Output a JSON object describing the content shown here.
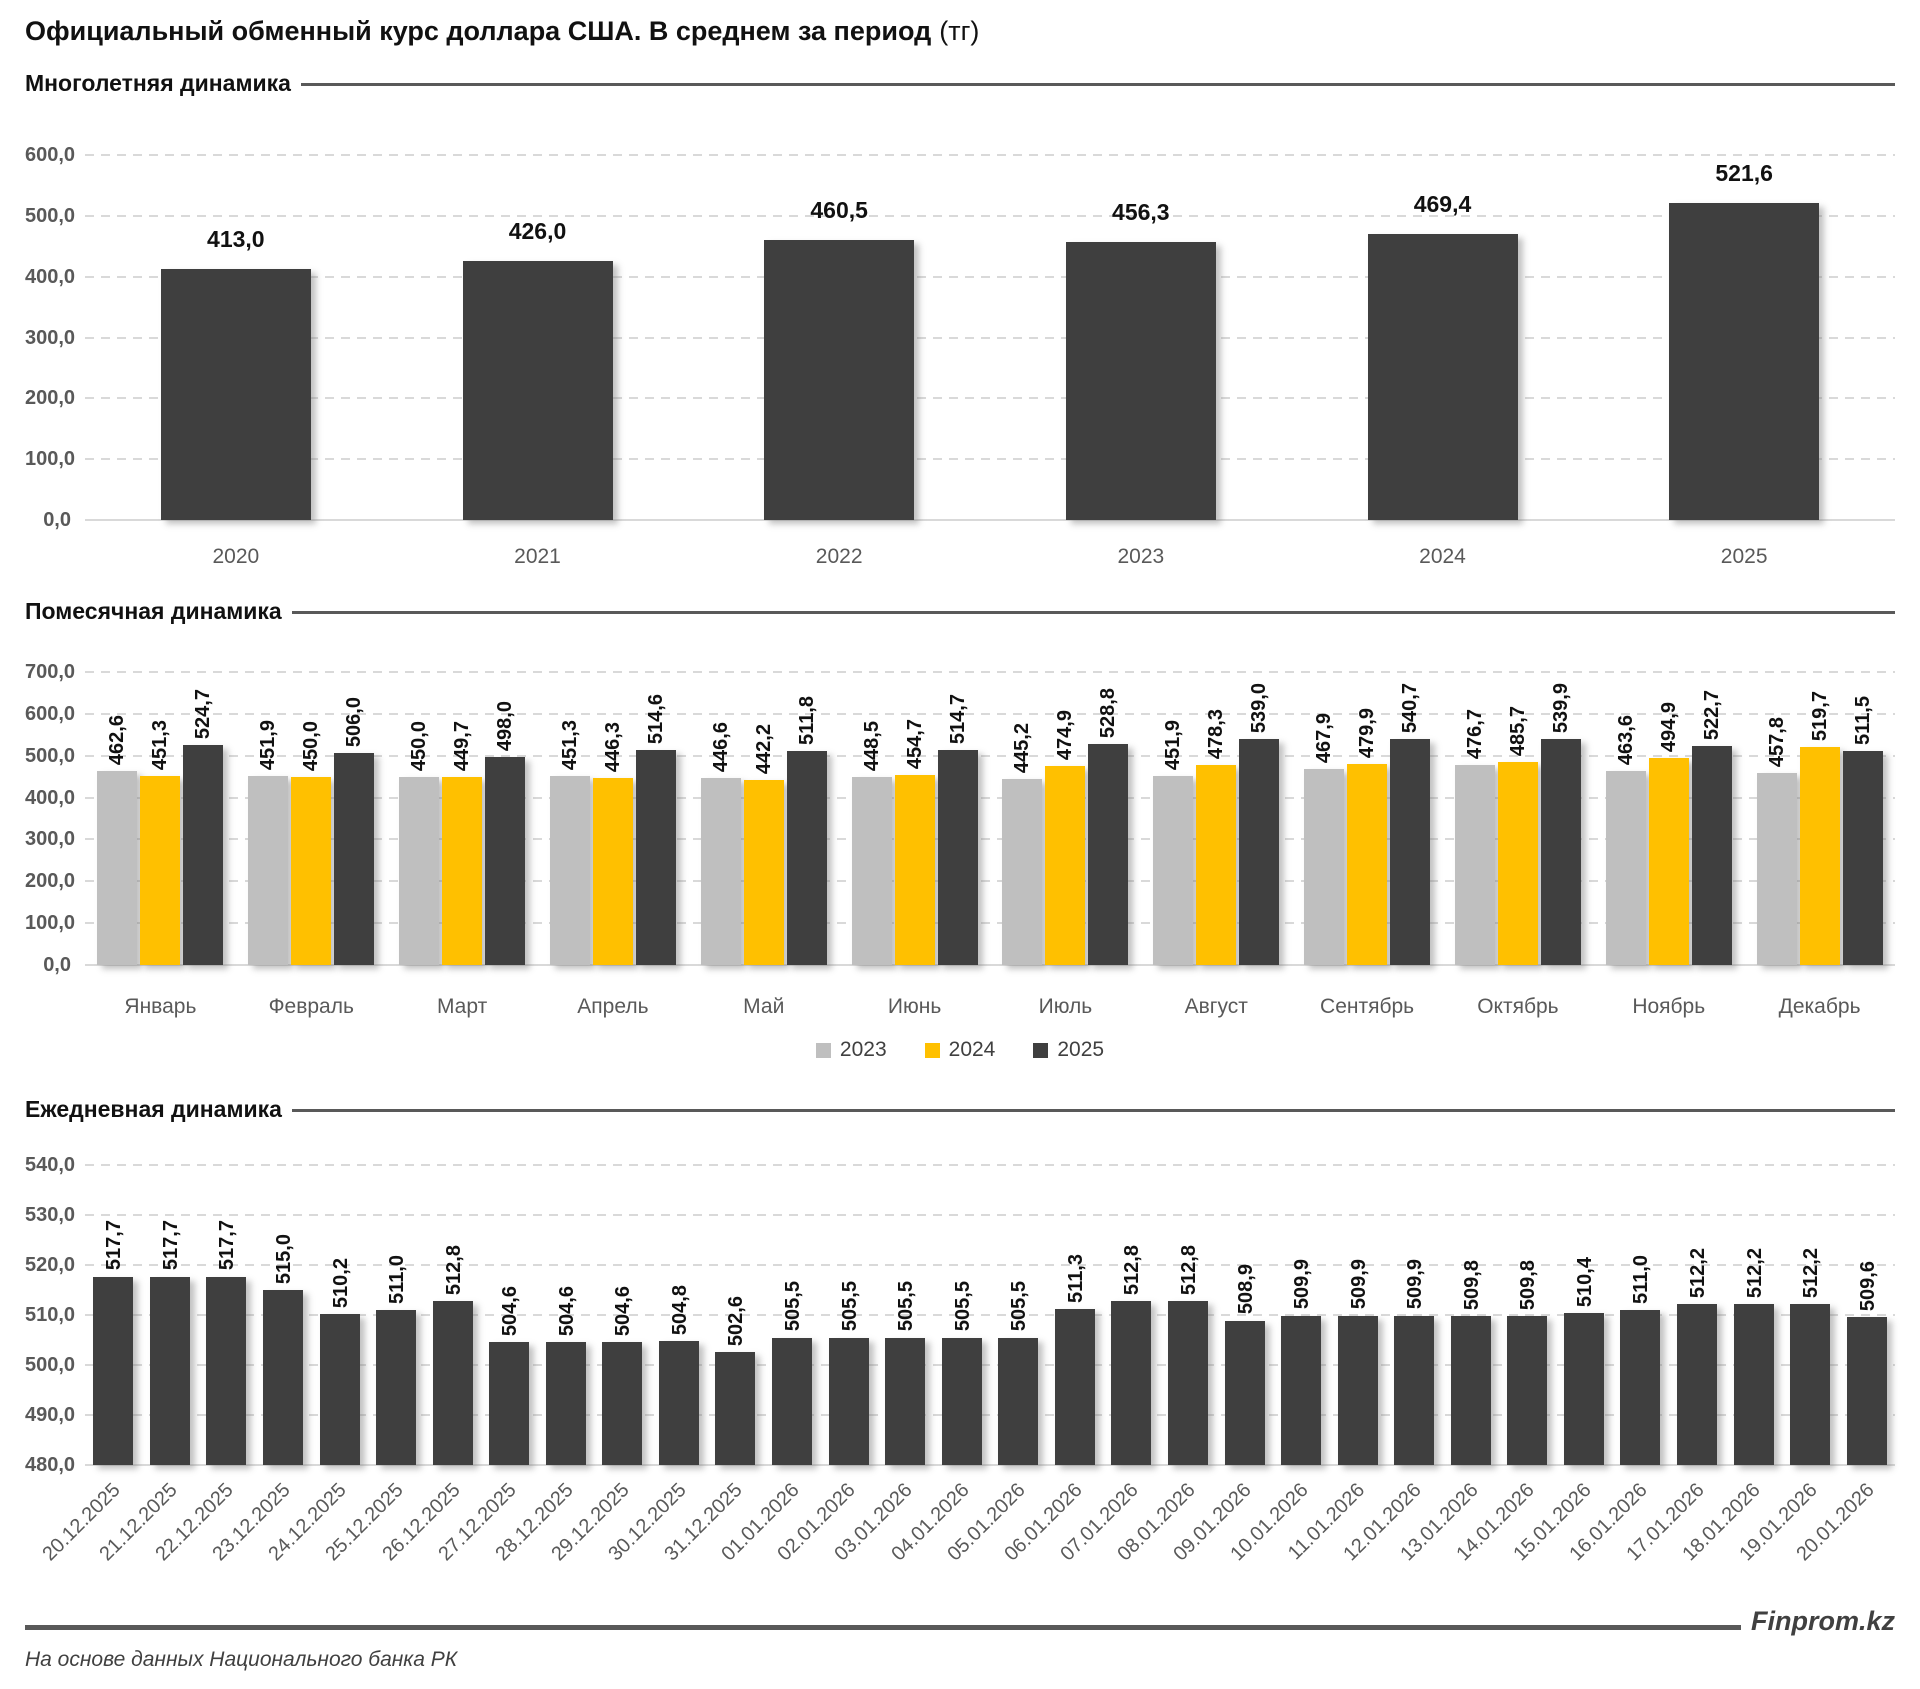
{
  "page_title": {
    "main": "Официальный обменный курс доллара США. В среднем за период",
    "unit": "(тг)"
  },
  "sections": [
    {
      "id": "yearly",
      "label": "Многолетняя динамика"
    },
    {
      "id": "monthly",
      "label": "Помесячная динамика"
    },
    {
      "id": "daily",
      "label": "Ежедневная динамика"
    }
  ],
  "footer": {
    "source_note": "На основе данных Национального банка РК",
    "brand": "Finprom.kz"
  },
  "colors": {
    "bar_dark": "#3f3f3f",
    "bar_yellow": "#ffc000",
    "bar_gray": "#bfbfbf",
    "axis_text": "#595959",
    "gridline": "#d9d9d9",
    "rule": "#595959"
  },
  "chart_data": [
    {
      "id": "yearly",
      "type": "bar",
      "title": "Многолетняя динамика",
      "categories": [
        "2020",
        "2021",
        "2022",
        "2023",
        "2024",
        "2025"
      ],
      "values": [
        413.0,
        426.0,
        460.5,
        456.3,
        469.4,
        521.6
      ],
      "value_labels": [
        "413,0",
        "426,0",
        "460,5",
        "456,3",
        "469,4",
        "521,6"
      ],
      "ylim": [
        0,
        600
      ],
      "ytick_labels": [
        "0,0",
        "100,0",
        "200,0",
        "300,0",
        "400,0",
        "500,0",
        "600,0"
      ],
      "grid": "dashed",
      "legend_position": "none",
      "bar_color_key": "bar_dark"
    },
    {
      "id": "monthly",
      "type": "bar",
      "title": "Помесячная динамика",
      "categories": [
        "Январь",
        "Февраль",
        "Март",
        "Апрель",
        "Май",
        "Июнь",
        "Июль",
        "Август",
        "Сентябрь",
        "Октябрь",
        "Ноябрь",
        "Декабрь"
      ],
      "series": [
        {
          "name": "2023",
          "color_key": "bar_gray",
          "values": [
            462.6,
            451.9,
            450.0,
            451.3,
            446.6,
            448.5,
            445.2,
            451.9,
            467.9,
            476.7,
            463.6,
            457.8
          ],
          "value_labels": [
            "462,6",
            "451,9",
            "450,0",
            "451,3",
            "446,6",
            "448,5",
            "445,2",
            "451,9",
            "467,9",
            "476,7",
            "463,6",
            "457,8"
          ]
        },
        {
          "name": "2024",
          "color_key": "bar_yellow",
          "values": [
            451.3,
            450.0,
            449.7,
            446.3,
            442.2,
            454.7,
            474.9,
            478.3,
            479.9,
            485.7,
            494.9,
            519.7
          ],
          "value_labels": [
            "451,3",
            "450,0",
            "449,7",
            "446,3",
            "442,2",
            "454,7",
            "474,9",
            "478,3",
            "479,9",
            "485,7",
            "494,9",
            "519,7"
          ]
        },
        {
          "name": "2025",
          "color_key": "bar_dark",
          "values": [
            524.7,
            506.0,
            498.0,
            514.6,
            511.8,
            514.7,
            528.8,
            539.0,
            540.7,
            539.9,
            522.7,
            511.5
          ],
          "value_labels": [
            "524,7",
            "506,0",
            "498,0",
            "514,6",
            "511,8",
            "514,7",
            "528,8",
            "539,0",
            "540,7",
            "539,9",
            "522,7",
            "511,5"
          ]
        }
      ],
      "ylim": [
        0,
        700
      ],
      "ytick_labels": [
        "0,0",
        "100,0",
        "200,0",
        "300,0",
        "400,0",
        "500,0",
        "600,0",
        "700,0"
      ],
      "grid": "dashed",
      "legend_position": "bottom"
    },
    {
      "id": "daily",
      "type": "bar",
      "title": "Ежедневная динамика",
      "categories": [
        "20.12.2025",
        "21.12.2025",
        "22.12.2025",
        "23.12.2025",
        "24.12.2025",
        "25.12.2025",
        "26.12.2025",
        "27.12.2025",
        "28.12.2025",
        "29.12.2025",
        "30.12.2025",
        "31.12.2025",
        "01.01.2026",
        "02.01.2026",
        "03.01.2026",
        "04.01.2026",
        "05.01.2026",
        "06.01.2026",
        "07.01.2026",
        "08.01.2026",
        "09.01.2026",
        "10.01.2026",
        "11.01.2026",
        "12.01.2026",
        "13.01.2026",
        "14.01.2026",
        "15.01.2026",
        "16.01.2026",
        "17.01.2026",
        "18.01.2026",
        "19.01.2026",
        "20.01.2026"
      ],
      "values": [
        517.7,
        517.7,
        517.7,
        515.0,
        510.2,
        511.0,
        512.8,
        504.6,
        504.6,
        504.6,
        504.8,
        502.6,
        505.5,
        505.5,
        505.5,
        505.5,
        505.5,
        511.3,
        512.8,
        512.8,
        508.9,
        509.9,
        509.9,
        509.9,
        509.8,
        509.8,
        510.4,
        511.0,
        512.2,
        512.2,
        512.2,
        509.6
      ],
      "value_labels": [
        "517,7",
        "517,7",
        "517,7",
        "515,0",
        "510,2",
        "511,0",
        "512,8",
        "504,6",
        "504,6",
        "504,6",
        "504,8",
        "502,6",
        "505,5",
        "505,5",
        "505,5",
        "505,5",
        "505,5",
        "511,3",
        "512,8",
        "512,8",
        "508,9",
        "509,9",
        "509,9",
        "509,9",
        "509,8",
        "509,8",
        "510,4",
        "511,0",
        "512,2",
        "512,2",
        "512,2",
        "509,6"
      ],
      "ylim": [
        480,
        540
      ],
      "ytick_labels": [
        "480,0",
        "490,0",
        "500,0",
        "510,0",
        "520,0",
        "530,0",
        "540,0"
      ],
      "grid": "dashed",
      "legend_position": "none",
      "bar_color_key": "bar_dark"
    }
  ]
}
